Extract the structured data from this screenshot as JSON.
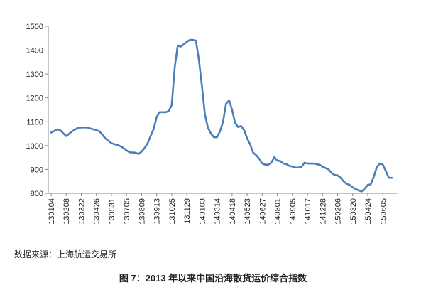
{
  "chart_data": {
    "type": "line",
    "title": "图 7：2013 年以来中国沿海散货运价综合指数",
    "source": "数据来源：上海航运交易所",
    "categories": [
      "130104",
      null,
      null,
      null,
      null,
      "130208",
      null,
      null,
      null,
      null,
      "130322",
      null,
      null,
      null,
      null,
      "130426",
      null,
      null,
      null,
      null,
      "130531",
      null,
      null,
      null,
      null,
      "130705",
      null,
      null,
      null,
      null,
      "130809",
      null,
      null,
      null,
      null,
      "130913",
      null,
      null,
      null,
      null,
      "131025",
      null,
      null,
      null,
      null,
      "131129",
      null,
      null,
      null,
      null,
      "140103",
      null,
      null,
      null,
      null,
      "140314",
      null,
      null,
      null,
      null,
      "140418",
      null,
      null,
      null,
      null,
      "140523",
      null,
      null,
      null,
      null,
      "140627",
      null,
      null,
      null,
      null,
      "140801",
      null,
      null,
      null,
      null,
      "140905",
      null,
      null,
      null,
      null,
      "141017",
      null,
      null,
      null,
      null,
      "141228",
      null,
      null,
      null,
      null,
      "150206",
      null,
      null,
      null,
      null,
      "150320",
      null,
      null,
      null,
      null,
      "150424",
      null,
      null,
      null,
      null,
      "150605",
      null,
      null,
      null
    ],
    "series": [
      {
        "color": "#4a7ebb",
        "values": [
          1055,
          1061,
          1068,
          1065,
          1052,
          1040,
          1050,
          1060,
          1068,
          1075,
          1076,
          1076,
          1076,
          1072,
          1068,
          1065,
          1060,
          1045,
          1030,
          1020,
          1010,
          1006,
          1003,
          997,
          990,
          980,
          972,
          971,
          970,
          965,
          975,
          990,
          1010,
          1040,
          1070,
          1120,
          1140,
          1140,
          1140,
          1145,
          1170,
          1330,
          1420,
          1415,
          1425,
          1435,
          1443,
          1443,
          1440,
          1360,
          1250,
          1130,
          1075,
          1050,
          1035,
          1035,
          1060,
          1100,
          1175,
          1190,
          1150,
          1095,
          1078,
          1082,
          1065,
          1030,
          1005,
          970,
          960,
          945,
          925,
          920,
          920,
          928,
          952,
          937,
          935,
          925,
          922,
          915,
          912,
          908,
          908,
          910,
          928,
          925,
          925,
          925,
          922,
          920,
          912,
          906,
          900,
          885,
          877,
          875,
          865,
          850,
          840,
          835,
          825,
          818,
          812,
          808,
          820,
          835,
          838,
          870,
          910,
          925,
          920,
          893,
          865,
          865
        ]
      }
    ],
    "ylim": [
      800,
      1500
    ],
    "yticks": [
      800,
      900,
      1000,
      1100,
      1200,
      1300,
      1400,
      1500
    ]
  }
}
